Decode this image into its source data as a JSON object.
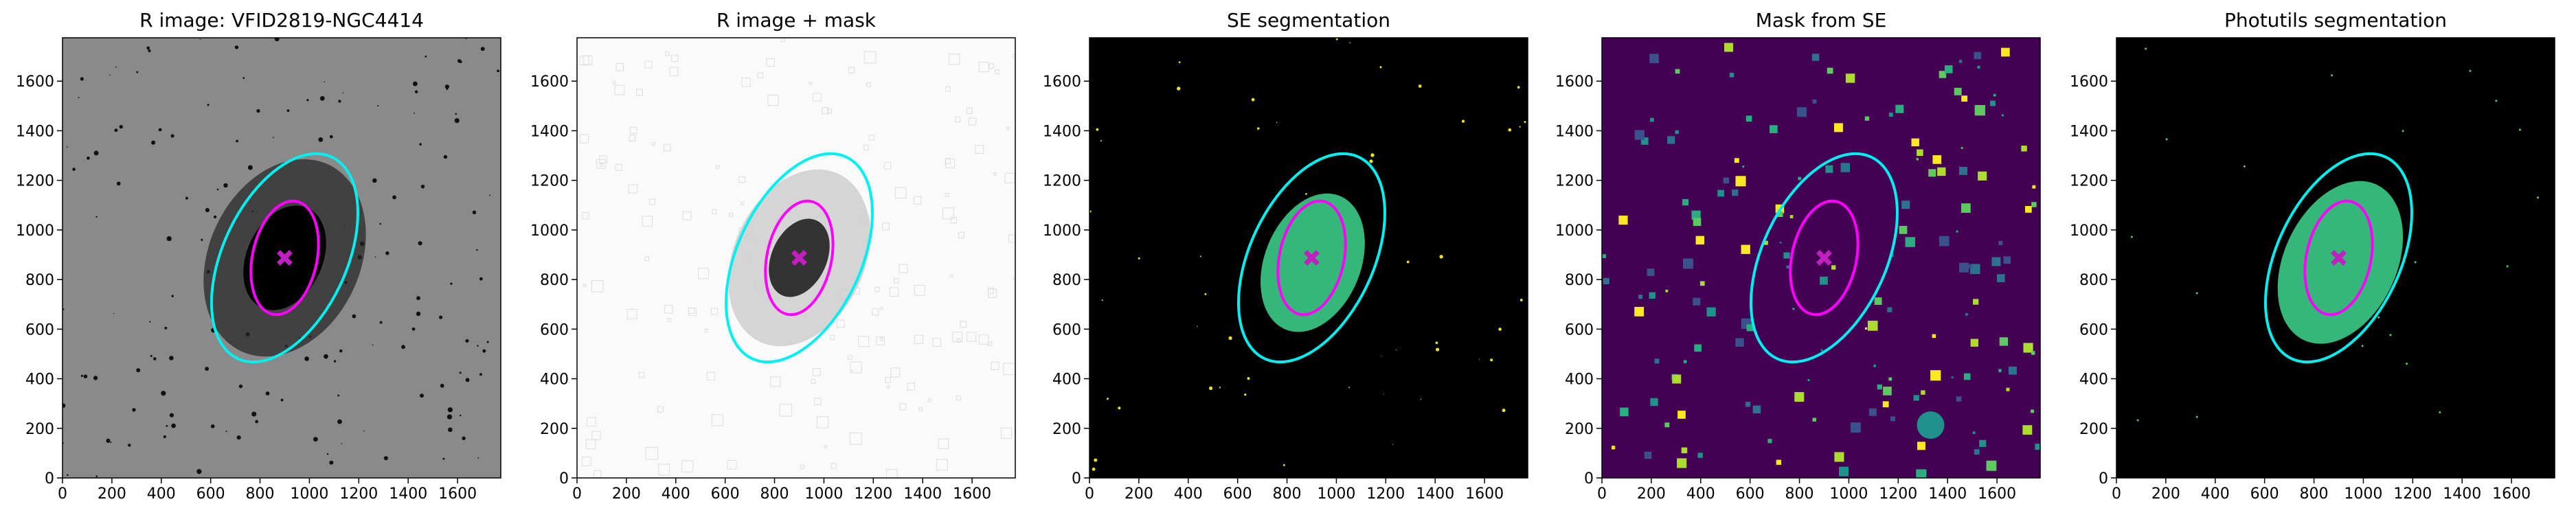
{
  "chart_data": [
    {
      "type": "image",
      "title": "R image: VFID2819-NGC4414",
      "background": "#8a8a8a",
      "xlim": [
        0,
        1775
      ],
      "ylim": [
        0,
        1775
      ],
      "xticks": [
        0,
        200,
        400,
        600,
        800,
        1000,
        1200,
        1400,
        1600
      ],
      "yticks": [
        0,
        200,
        400,
        600,
        800,
        1000,
        1200,
        1400,
        1600
      ]
    },
    {
      "type": "image",
      "title": "R image + mask",
      "background": "#fafafa",
      "xlim": [
        0,
        1775
      ],
      "ylim": [
        0,
        1775
      ],
      "xticks": [
        0,
        200,
        400,
        600,
        800,
        1000,
        1200,
        1400,
        1600
      ],
      "yticks": [
        0,
        200,
        400,
        600,
        800,
        1000,
        1200,
        1400,
        1600
      ]
    },
    {
      "type": "image",
      "title": "SE segmentation",
      "background": "#000000",
      "xlim": [
        0,
        1775
      ],
      "ylim": [
        0,
        1775
      ],
      "xticks": [
        0,
        200,
        400,
        600,
        800,
        1000,
        1200,
        1400,
        1600
      ],
      "yticks": [
        0,
        200,
        400,
        600,
        800,
        1000,
        1200,
        1400,
        1600
      ]
    },
    {
      "type": "image",
      "title": "Mask from SE",
      "background": "#440154",
      "xlim": [
        0,
        1775
      ],
      "ylim": [
        0,
        1775
      ],
      "xticks": [
        0,
        200,
        400,
        600,
        800,
        1000,
        1200,
        1400,
        1600
      ],
      "yticks": [
        0,
        200,
        400,
        600,
        800,
        1000,
        1200,
        1400,
        1600
      ]
    },
    {
      "type": "image",
      "title": "Photutils segmentation",
      "background": "#000000",
      "xlim": [
        0,
        1775
      ],
      "ylim": [
        0,
        1775
      ],
      "xticks": [
        0,
        200,
        400,
        600,
        800,
        1000,
        1200,
        1400,
        1600
      ],
      "yticks": [
        0,
        200,
        400,
        600,
        800,
        1000,
        1200,
        1400,
        1600
      ]
    }
  ]
}
